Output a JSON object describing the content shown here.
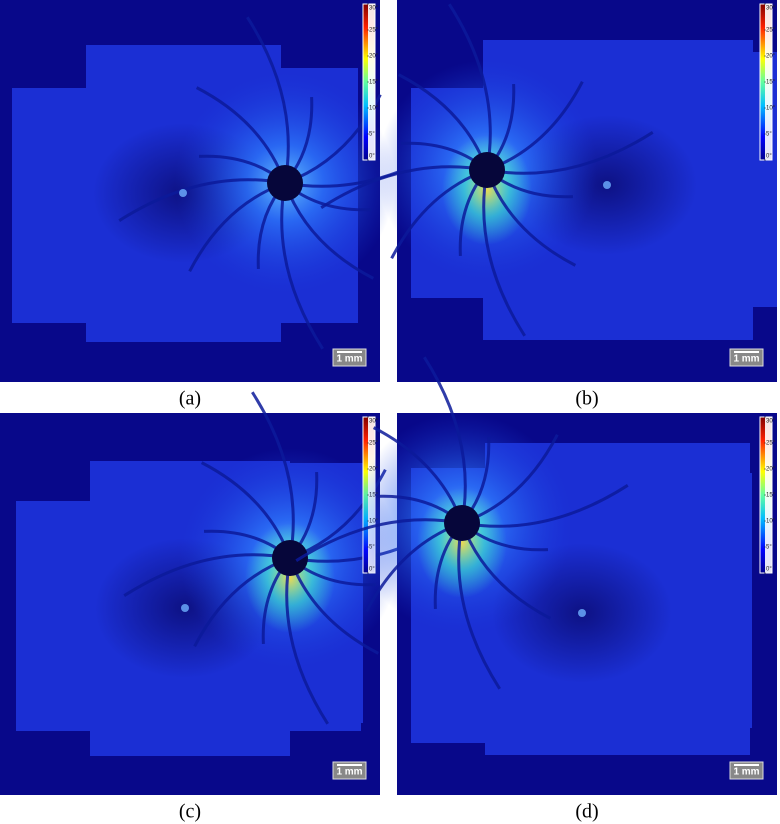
{
  "panels": [
    {
      "label": "(a)",
      "scale_bar": "1 mm"
    },
    {
      "label": "(b)",
      "scale_bar": "1 mm"
    },
    {
      "label": "(c)",
      "scale_bar": "1 mm"
    },
    {
      "label": "(d)",
      "scale_bar": "1 mm"
    }
  ],
  "colorbar": {
    "range": [
      0,
      30
    ],
    "ticks": [
      {
        "value": 0,
        "label": "0°"
      },
      {
        "value": 5,
        "label": "5°"
      },
      {
        "value": 10,
        "label": "10°"
      },
      {
        "value": 15,
        "label": "15°"
      },
      {
        "value": 20,
        "label": "20°"
      },
      {
        "value": 25,
        "label": "25°"
      },
      {
        "value": 30,
        "label": "30°"
      }
    ]
  }
}
